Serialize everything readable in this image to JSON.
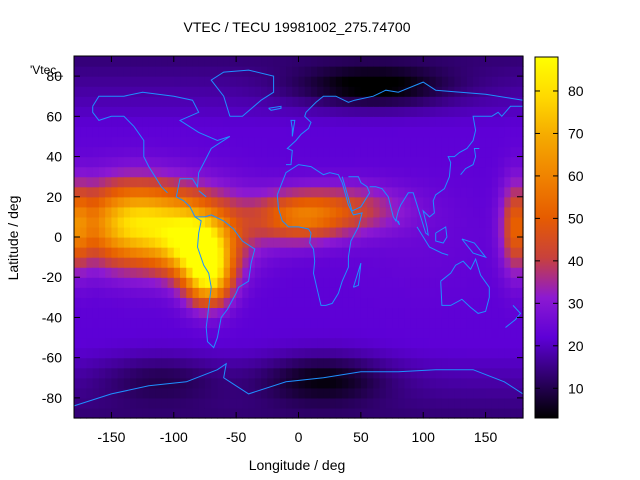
{
  "chart_data": {
    "type": "heatmap",
    "title": "VTEC / TECU 19981002_275.74700",
    "xlabel": "Longitude / deg",
    "ylabel": "Latitude / deg",
    "legend_key": "'Vtec_",
    "xlim": [
      -180,
      180
    ],
    "ylim": [
      -90,
      90
    ],
    "x_ticks": [
      -150,
      -100,
      -50,
      0,
      50,
      100,
      150
    ],
    "y_ticks": [
      -80,
      -60,
      -40,
      -20,
      0,
      20,
      40,
      60,
      80
    ],
    "colorbar": {
      "range": [
        3,
        88
      ],
      "ticks": [
        10,
        20,
        30,
        40,
        50,
        60,
        70,
        80
      ]
    },
    "grid": false,
    "colormap": [
      "#000000",
      "#2e0069",
      "#5d00d6",
      "#8c19d2",
      "#c8413c",
      "#e65c00",
      "#f08200",
      "#f5a900",
      "#ffd900",
      "#ffff00"
    ],
    "coastline_color": "#1e90ff",
    "grid_resolution_deg": [
      5,
      5
    ],
    "features": [
      {
        "lon": -100,
        "lat": 5,
        "value": 62,
        "sigma_lon": 55,
        "sigma_lat": 20
      },
      {
        "lon": -140,
        "lat": 8,
        "value": 55,
        "sigma_lon": 40,
        "sigma_lat": 20
      },
      {
        "lon": -72,
        "lat": -20,
        "value": 72,
        "sigma_lon": 18,
        "sigma_lat": 14
      },
      {
        "lon": -80,
        "lat": -5,
        "value": 66,
        "sigma_lon": 25,
        "sigma_lat": 15
      },
      {
        "lon": 0,
        "lat": 10,
        "value": 50,
        "sigma_lon": 35,
        "sigma_lat": 12
      },
      {
        "lon": 40,
        "lat": 14,
        "value": 40,
        "sigma_lon": 45,
        "sigma_lat": 12
      },
      {
        "lon": 175,
        "lat": 5,
        "value": 52,
        "sigma_lon": 12,
        "sigma_lat": 22
      },
      {
        "lon": -178,
        "lat": 5,
        "value": 45,
        "sigma_lon": 10,
        "sigma_lat": 20
      },
      {
        "lon": 100,
        "lat": 0,
        "value": 24,
        "sigma_lon": 60,
        "sigma_lat": 30
      },
      {
        "lon": 60,
        "lat": 75,
        "value": 6,
        "sigma_lon": 60,
        "sigma_lat": 10
      },
      {
        "lon": 20,
        "lat": -70,
        "value": 8,
        "sigma_lon": 50,
        "sigma_lat": 12
      },
      {
        "lon": -110,
        "lat": -70,
        "value": 14,
        "sigma_lon": 50,
        "sigma_lat": 12
      }
    ],
    "background_value": 22
  }
}
